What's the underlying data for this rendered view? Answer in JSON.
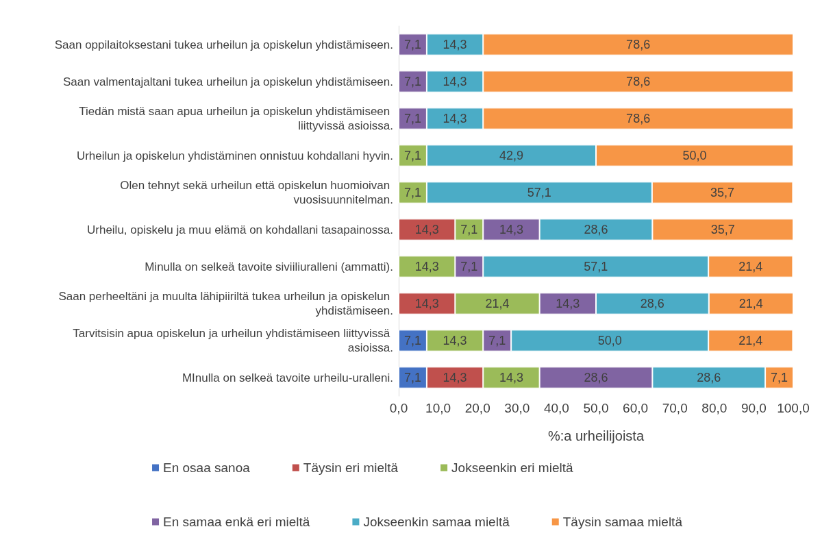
{
  "chart_data": {
    "type": "bar",
    "orientation": "horizontal",
    "stacked": true,
    "categories": [
      "Saan oppilaitoksestani tukea urheilun ja opiskelun yhdistämiseen.",
      "Saan valmentajaltani tukea urheilun ja opiskelun yhdistämiseen.",
      "Tiedän mistä saan apua urheilun ja opiskelun yhdistämiseen liittyvissä asioissa.",
      "Urheilun ja opiskelun yhdistäminen onnistuu kohdallani hyvin.",
      "Olen tehnyt sekä urheilun että opiskelun huomioivan vuosisuunnitelman.",
      "Urheilu, opiskelu ja muu elämä on kohdallani tasapainossa.",
      "Minulla on selkeä tavoite siviiliuralleni (ammatti).",
      "Saan perheeltäni ja muulta lähipiiriltä tukea urheilun ja opiskelun yhdistämiseen.",
      "Tarvitsisin apua opiskelun ja urheilun yhdistämiseen liittyvissä asioissa.",
      "MInulla on selkeä tavoite urheilu-uralleni."
    ],
    "series": [
      {
        "name": "En osaa sanoa",
        "color": "#4472c4",
        "values": [
          null,
          null,
          null,
          null,
          null,
          null,
          null,
          null,
          7.1,
          7.1
        ],
        "value_labels": [
          null,
          null,
          null,
          null,
          null,
          null,
          null,
          null,
          "7,1",
          "7,1"
        ]
      },
      {
        "name": "Täysin eri mieltä",
        "color": "#c0504d",
        "values": [
          null,
          null,
          null,
          null,
          null,
          14.3,
          null,
          14.3,
          null,
          14.3
        ],
        "value_labels": [
          null,
          null,
          null,
          null,
          null,
          "14,3",
          null,
          "14,3",
          null,
          "14,3"
        ]
      },
      {
        "name": "Jokseenkin eri mieltä",
        "color": "#9bbb59",
        "values": [
          null,
          null,
          null,
          7.1,
          7.1,
          7.1,
          14.3,
          21.4,
          14.3,
          14.3
        ],
        "value_labels": [
          null,
          null,
          null,
          "7,1",
          "7,1",
          "7,1",
          "14,3",
          "21,4",
          "14,3",
          "14,3"
        ]
      },
      {
        "name": "En samaa enkä eri mieltä",
        "color": "#8064a2",
        "values": [
          7.1,
          7.1,
          7.1,
          null,
          null,
          14.3,
          7.1,
          14.3,
          7.1,
          28.6
        ],
        "value_labels": [
          "7,1",
          "7,1",
          "7,1",
          null,
          null,
          "14,3",
          "7,1",
          "14,3",
          "7,1",
          "28,6"
        ]
      },
      {
        "name": "Jokseenkin samaa mieltä",
        "color": "#4bacc6",
        "values": [
          14.3,
          14.3,
          14.3,
          42.9,
          57.1,
          28.6,
          57.1,
          28.6,
          50.0,
          28.6
        ],
        "value_labels": [
          "14,3",
          "14,3",
          "14,3",
          "42,9",
          "57,1",
          "28,6",
          "57,1",
          "28,6",
          "50,0",
          "28,6"
        ]
      },
      {
        "name": "Täysin samaa mieltä",
        "color": "#f79646",
        "values": [
          78.6,
          78.6,
          78.6,
          50.0,
          35.7,
          35.7,
          21.4,
          21.4,
          21.4,
          7.1
        ],
        "value_labels": [
          "78,6",
          "78,6",
          "78,6",
          "50,0",
          "35,7",
          "35,7",
          "21,4",
          "21,4",
          "21,4",
          "7,1"
        ]
      }
    ],
    "xlabel": "%:a urheilijoista",
    "xlim": [
      0,
      100
    ],
    "xticks": [
      {
        "value": 0,
        "label": "0,0"
      },
      {
        "value": 10,
        "label": "10,0"
      },
      {
        "value": 20,
        "label": "20,0"
      },
      {
        "value": 30,
        "label": "30,0"
      },
      {
        "value": 40,
        "label": "40,0"
      },
      {
        "value": 50,
        "label": "50,0"
      },
      {
        "value": 60,
        "label": "60,0"
      },
      {
        "value": 70,
        "label": "70,0"
      },
      {
        "value": 80,
        "label": "80,0"
      },
      {
        "value": 90,
        "label": "90,0"
      },
      {
        "value": 100,
        "label": "100,0"
      }
    ],
    "grid": false,
    "legend": "bottom"
  }
}
